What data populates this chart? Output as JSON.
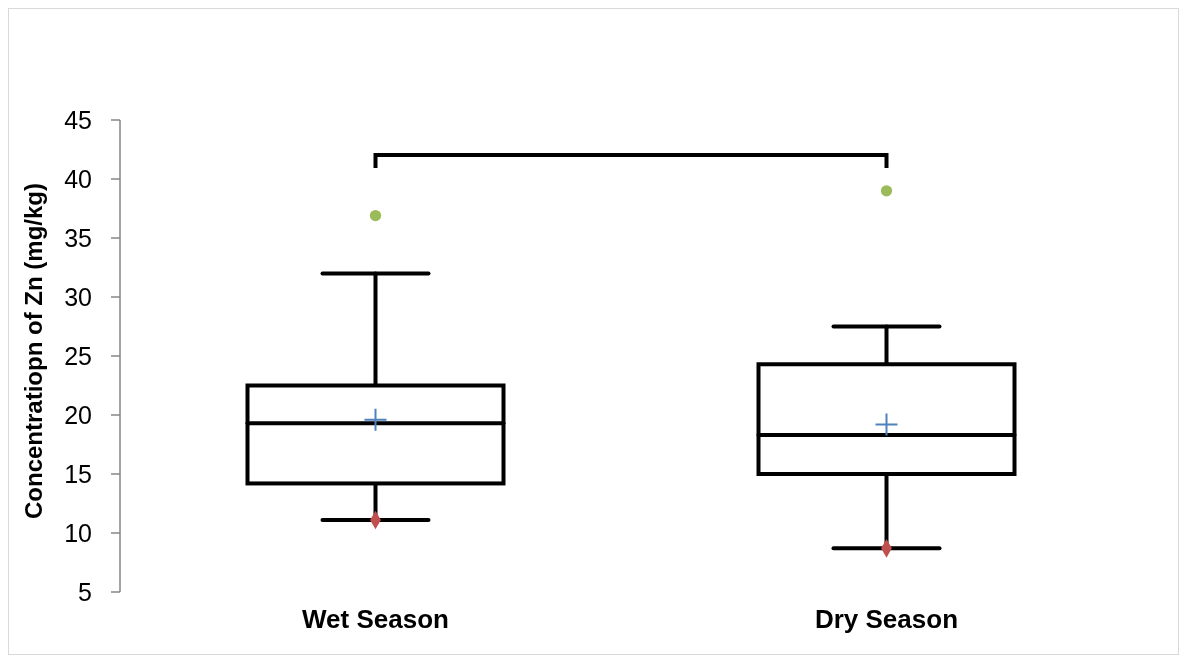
{
  "chart_data": {
    "type": "box",
    "ylabel": "Concentratiopn of Zn (mg/kg)",
    "categories": [
      "Wet Season",
      "Dry Season"
    ],
    "ylim": [
      5,
      45
    ],
    "yticks": [
      5,
      10,
      15,
      20,
      25,
      30,
      35,
      40,
      45
    ],
    "grid": false,
    "series": [
      {
        "color": "#000000",
        "boxes": [
          {
            "low": 11.1,
            "q1": 14.2,
            "median": 19.3,
            "q3": 22.5,
            "high": 32.0,
            "mean": 19.6
          },
          {
            "low": 8.7,
            "q1": 15.0,
            "median": 18.3,
            "q3": 24.3,
            "high": 27.5,
            "mean": 19.2
          }
        ]
      },
      {
        "type": "scatter",
        "x": [
          "Wet Season",
          "Dry Season"
        ],
        "values": [
          36.9,
          39.0
        ],
        "color": "#9bbb59",
        "marker": "circle"
      },
      {
        "type": "scatter",
        "x": [
          "Wet Season",
          "Dry Season"
        ],
        "values": [
          11.1,
          8.7
        ],
        "color": "#c0504d",
        "marker": "diamond"
      }
    ]
  }
}
